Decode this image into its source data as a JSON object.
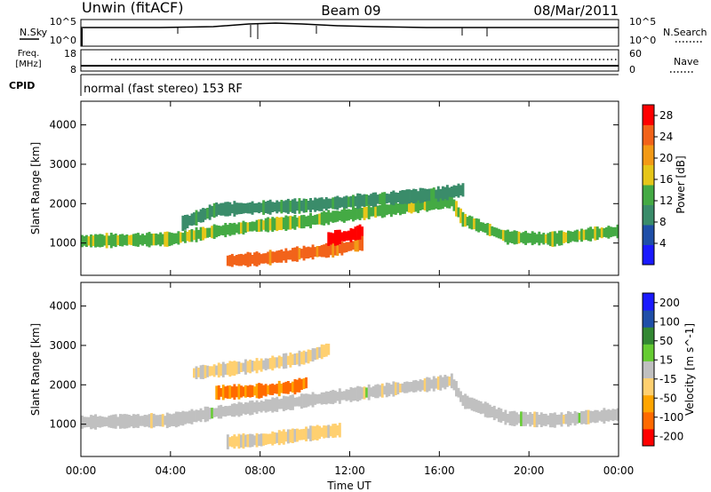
{
  "header": {
    "station": "Unwin (fitACF)",
    "beam": "Beam 09",
    "date": "08/Mar/2011"
  },
  "top_panels": {
    "nsky_label": "N.Sky",
    "nsky_ticks": [
      "10^5",
      "10^0"
    ],
    "nsearch_label": "N.Search",
    "nsearch_ticks": [
      "10^5",
      "10^0"
    ],
    "freq_label_1": "Freq.",
    "freq_label_2": "[MHz]",
    "freq_ticks": [
      "18",
      "8"
    ],
    "nave_label": "Nave",
    "nave_ticks": [
      "60",
      "0"
    ],
    "cpid_label": "CPID",
    "cpid_text": "normal (fast stereo) 153 RF"
  },
  "colors": {
    "power_scale": [
      "#1a1aff",
      "#1f4fa8",
      "#3a8c6a",
      "#44aa44",
      "#e6c619",
      "#f39a16",
      "#f2631a",
      "#ff0000"
    ],
    "velocity_scale": [
      "#ff0000",
      "#ff6a00",
      "#ffa500",
      "#ffd070",
      "#c0c0c0",
      "#66cc33",
      "#338833",
      "#1f4fa8",
      "#1a1aff"
    ],
    "ground_scatter": "#c0c0c0"
  },
  "chart_data": [
    {
      "type": "heatmap",
      "name": "power-panel",
      "title": "",
      "xlabel": "",
      "ylabel": "Slant Range [km]",
      "x_ticks": [
        "00:00",
        "04:00",
        "08:00",
        "12:00",
        "16:00",
        "20:00",
        "00:00"
      ],
      "x_range_hours": [
        0,
        24
      ],
      "y_ticks": [
        1000,
        2000,
        3000,
        4000
      ],
      "ylim": [
        180,
        4600
      ],
      "colorbar_label": "Power [dB]",
      "colorbar_ticks": [
        4,
        8,
        12,
        16,
        20,
        24,
        28
      ],
      "colorbar_range": [
        0,
        30
      ],
      "bands": [
        {
          "t": [
            0,
            4,
            6,
            8,
            10,
            11,
            13,
            15,
            16.5,
            17,
            19,
            21,
            23,
            24
          ],
          "range": [
            1050,
            1100,
            1300,
            1450,
            1550,
            1650,
            1800,
            1950,
            2050,
            1600,
            1150,
            1100,
            1250,
            1300
          ],
          "value": 14
        },
        {
          "t": [
            4.5,
            6,
            8,
            10,
            12,
            14,
            16,
            17
          ],
          "range": [
            1500,
            1850,
            1900,
            1950,
            2050,
            2150,
            2250,
            2350
          ],
          "value": 10
        },
        {
          "t": [
            6.5,
            8,
            10,
            11.5,
            12.5
          ],
          "range": [
            550,
            600,
            750,
            850,
            1000
          ],
          "value": 24
        },
        {
          "t": [
            11,
            11.5,
            12,
            12.5
          ],
          "range": [
            1100,
            1150,
            1200,
            1300
          ],
          "value": 28
        }
      ]
    },
    {
      "type": "heatmap",
      "name": "velocity-panel",
      "title": "",
      "xlabel": "Time UT",
      "ylabel": "Slant Range [km]",
      "x_ticks": [
        "00:00",
        "04:00",
        "08:00",
        "12:00",
        "16:00",
        "20:00",
        "00:00"
      ],
      "x_range_hours": [
        0,
        24
      ],
      "y_ticks": [
        1000,
        2000,
        3000,
        4000
      ],
      "ylim": [
        180,
        4600
      ],
      "colorbar_label": "Velocity [m s^-1]",
      "colorbar_ticks": [
        200,
        100,
        50,
        15,
        -15,
        -50,
        -100,
        -200
      ],
      "colorbar_range": [
        -250,
        250
      ],
      "bands": [
        {
          "t": [
            0,
            4,
            6,
            8,
            10,
            12,
            14,
            16,
            16.5,
            17,
            19,
            21,
            23,
            24
          ],
          "range": [
            1050,
            1100,
            1300,
            1450,
            1600,
            1750,
            1900,
            2050,
            2100,
            1600,
            1150,
            1100,
            1200,
            1250
          ],
          "value": 0
        },
        {
          "t": [
            6.5,
            8,
            10,
            11.5
          ],
          "range": [
            550,
            600,
            750,
            850
          ],
          "value": -40
        },
        {
          "t": [
            6,
            8,
            9.5,
            10
          ],
          "range": [
            1800,
            1850,
            1950,
            2050
          ],
          "value": -150
        },
        {
          "t": [
            5,
            8,
            10,
            11
          ],
          "range": [
            2300,
            2500,
            2700,
            2900
          ],
          "value": -40
        }
      ]
    }
  ]
}
